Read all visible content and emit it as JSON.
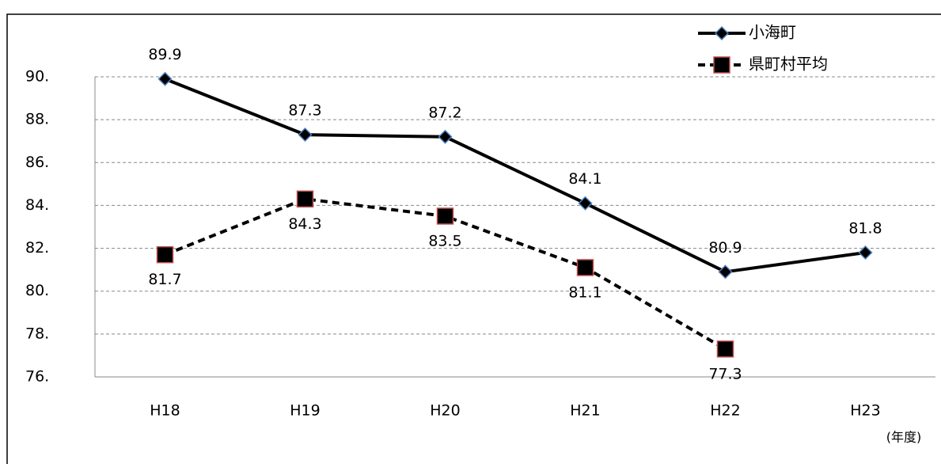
{
  "chart_data": {
    "type": "line",
    "categories": [
      "H18",
      "H19",
      "H20",
      "H21",
      "H22",
      "H23"
    ],
    "x_unit_label": "(年度)",
    "series": [
      {
        "name": "小海町",
        "color": "#000000",
        "marker": "diamond",
        "marker_edge": "#4f81bd",
        "dash": false,
        "values": [
          89.9,
          87.3,
          87.2,
          84.1,
          80.9,
          81.8
        ]
      },
      {
        "name": "県町村平均",
        "color": "#000000",
        "marker": "square",
        "marker_edge": "#c0504d",
        "dash": true,
        "values": [
          81.7,
          84.3,
          83.5,
          81.1,
          77.3,
          null
        ]
      }
    ],
    "ylim": [
      76,
      90
    ],
    "yticks": [
      {
        "value": 76,
        "label": "76."
      },
      {
        "value": 78,
        "label": "78."
      },
      {
        "value": 80,
        "label": "80."
      },
      {
        "value": 82,
        "label": "82."
      },
      {
        "value": 84,
        "label": "84."
      },
      {
        "value": 86,
        "label": "86."
      },
      {
        "value": 88,
        "label": "88."
      },
      {
        "value": 90,
        "label": "90."
      }
    ],
    "grid": true,
    "legend": "top-right"
  }
}
